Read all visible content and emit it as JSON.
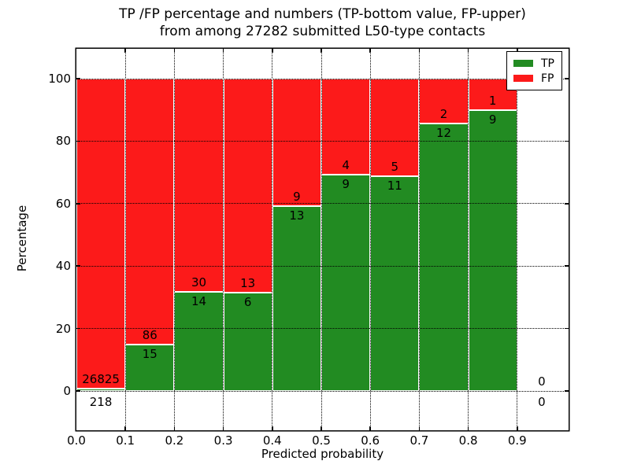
{
  "figure": {
    "title_line1": "TP /FP percentage and numbers (TP-bottom value, FP-upper)",
    "title_line2": "from among 27282 submitted L50-type contacts"
  },
  "axes": {
    "xlabel": "Predicted probability",
    "ylabel": "Percentage",
    "ytick_labels": [
      "0",
      "20",
      "40",
      "60",
      "80",
      "100"
    ],
    "ytick_values": [
      0,
      20,
      40,
      60,
      80,
      100
    ],
    "xtick_labels": [
      "0.0",
      "0.1",
      "0.2",
      "0.3",
      "0.4",
      "0.5",
      "0.6",
      "0.7",
      "0.8",
      "0.9"
    ],
    "xtick_values": [
      0.0,
      0.1,
      0.2,
      0.3,
      0.4,
      0.5,
      0.6,
      0.7,
      0.8,
      0.9
    ]
  },
  "legend": {
    "items": [
      {
        "label": "TP",
        "color": "#228b22"
      },
      {
        "label": "FP",
        "color": "#fc1a1a"
      }
    ]
  },
  "colors": {
    "tp_green": "#228b22",
    "fp_red": "#fc1a1a",
    "grid": "#000000",
    "axis": "#000000",
    "background": "#ffffff"
  },
  "chart_data": {
    "type": "bar",
    "stacked": true,
    "normalized_to_percent": true,
    "title": "TP /FP percentage and numbers (TP-bottom value, FP-upper) from among 27282 submitted L50-type contacts",
    "xlabel": "Predicted probability",
    "ylabel": "Percentage",
    "total_submitted_contacts": 27282,
    "bin_width": 0.1,
    "categories": [
      "0.0-0.1",
      "0.1-0.2",
      "0.2-0.3",
      "0.3-0.4",
      "0.4-0.5",
      "0.5-0.6",
      "0.6-0.7",
      "0.7-0.8",
      "0.8-0.9",
      "0.9-1.0"
    ],
    "bin_starts": [
      0.0,
      0.1,
      0.2,
      0.3,
      0.4,
      0.5,
      0.6,
      0.7,
      0.8,
      0.9
    ],
    "series": [
      {
        "name": "TP",
        "color": "#228b22",
        "counts": [
          218,
          15,
          14,
          6,
          13,
          9,
          11,
          12,
          9,
          0
        ],
        "pct": [
          0.81,
          14.85,
          31.82,
          31.58,
          59.09,
          69.23,
          68.75,
          85.71,
          90.0,
          0.0
        ]
      },
      {
        "name": "FP",
        "color": "#fc1a1a",
        "counts": [
          26825,
          86,
          30,
          13,
          9,
          4,
          5,
          2,
          1,
          0
        ],
        "pct": [
          99.19,
          85.15,
          68.18,
          68.42,
          40.91,
          30.77,
          31.25,
          14.29,
          10.0,
          0.0
        ]
      }
    ],
    "annotation_note": "TP count printed below the green top edge, FP count printed above it",
    "xlim": [
      0.0,
      1.005
    ],
    "ylim": [
      -12.6,
      109.6
    ],
    "grid": "dotted",
    "legend_position": "upper right"
  }
}
